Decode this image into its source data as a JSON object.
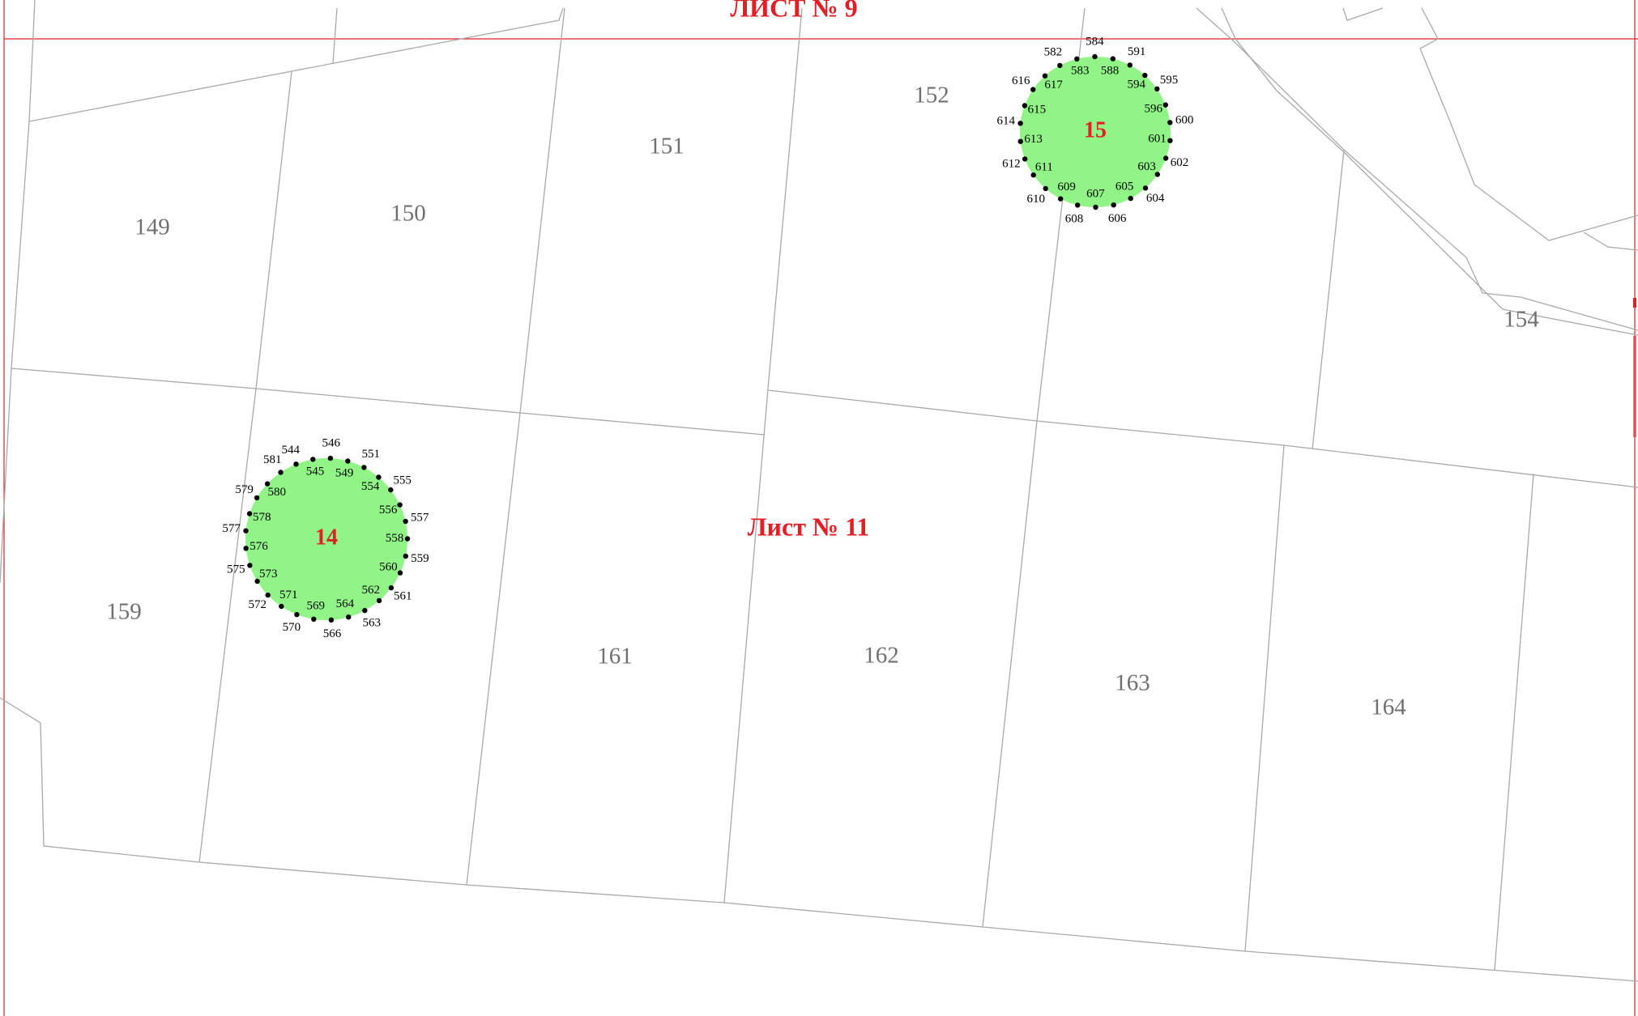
{
  "map": {
    "sheets": {
      "top": "ЛИСТ № 9",
      "center": "Лист № 11"
    },
    "parcels": [
      "149",
      "150",
      "151",
      "152",
      "154",
      "159",
      "161",
      "162",
      "163",
      "164"
    ],
    "zones": [
      {
        "id": "14",
        "fill": "#90f586",
        "points": [
          "544",
          "545",
          "546",
          "549",
          "551",
          "554",
          "555",
          "556",
          "557",
          "558",
          "559",
          "560",
          "561",
          "562",
          "563",
          "564",
          "566",
          "569",
          "570",
          "571",
          "572",
          "573",
          "575",
          "576",
          "577",
          "578",
          "579",
          "580",
          "581"
        ]
      },
      {
        "id": "15",
        "fill": "#90f586",
        "points": [
          "582",
          "583",
          "584",
          "588",
          "591",
          "594",
          "595",
          "596",
          "600",
          "601",
          "602",
          "603",
          "604",
          "605",
          "606",
          "607",
          "608",
          "609",
          "610",
          "611",
          "612",
          "613",
          "614",
          "615",
          "616",
          "617"
        ]
      }
    ],
    "colors": {
      "sheet_border": "#e31e24",
      "parcel_line": "#a9a9a9",
      "zone_fill": "#90f586",
      "zone_label": "#e31e24"
    }
  }
}
